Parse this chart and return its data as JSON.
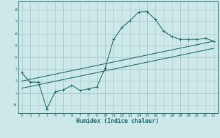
{
  "xlabel": "Humidex (Indice chaleur)",
  "bg_color": "#cce8e8",
  "grid_color": "#aacccc",
  "line_color": "#1a6b6b",
  "xlim": [
    -0.5,
    23.5
  ],
  "ylim": [
    -0.7,
    8.7
  ],
  "xticks": [
    0,
    1,
    2,
    3,
    4,
    5,
    6,
    7,
    8,
    9,
    10,
    11,
    12,
    13,
    14,
    15,
    16,
    17,
    18,
    19,
    20,
    21,
    22,
    23
  ],
  "yticks": [
    0,
    1,
    2,
    3,
    4,
    5,
    6,
    7,
    8
  ],
  "ytick_labels": [
    "-0",
    "1",
    "2",
    "3",
    "4",
    "5",
    "6",
    "7",
    "8"
  ],
  "series1_x": [
    0,
    1,
    2,
    3,
    4,
    5,
    6,
    7,
    8,
    9,
    10,
    11,
    12,
    13,
    14,
    15,
    16,
    17,
    18,
    19,
    20,
    21,
    22,
    23
  ],
  "series1_y": [
    2.7,
    1.9,
    1.9,
    -0.35,
    1.1,
    1.25,
    1.65,
    1.2,
    1.35,
    1.5,
    3.1,
    5.5,
    6.5,
    7.1,
    7.8,
    7.85,
    7.2,
    6.2,
    5.75,
    5.5,
    5.5,
    5.5,
    5.6,
    5.35
  ],
  "line1_x": [
    0,
    23
  ],
  "line1_y": [
    2.0,
    5.35
  ],
  "line2_x": [
    0,
    23
  ],
  "line2_y": [
    1.4,
    4.75
  ]
}
